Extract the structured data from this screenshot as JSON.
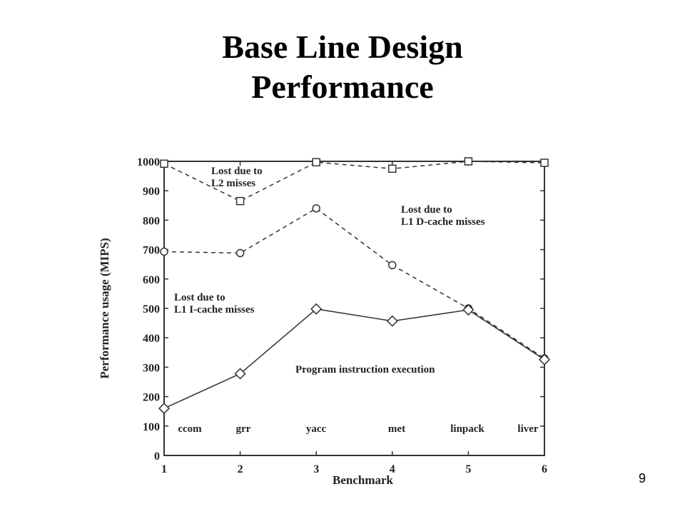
{
  "slide": {
    "title_line1": "Base Line Design",
    "title_line2": "Performance",
    "page_number": "9"
  },
  "chart_data": {
    "type": "line",
    "title": "",
    "xlabel": "Benchmark",
    "ylabel": "Performance usage (MIPS)",
    "x": [
      1,
      2,
      3,
      4,
      5,
      6
    ],
    "xlim": [
      1,
      6
    ],
    "ylim": [
      0,
      1000
    ],
    "yticks": [
      0,
      100,
      200,
      300,
      400,
      500,
      600,
      700,
      800,
      900,
      1000
    ],
    "grid": false,
    "categories": [
      "ccom",
      "grr",
      "yacc",
      "met",
      "linpack",
      "liver"
    ],
    "series": [
      {
        "values": [
          992,
          865,
          997,
          975,
          1000,
          995
        ],
        "marker": "square",
        "line_style": "dashed",
        "color": "#333333"
      },
      {
        "values": [
          693,
          688,
          840,
          647,
          500,
          330
        ],
        "marker": "circle",
        "line_style": "dashed",
        "color": "#333333"
      },
      {
        "values": [
          160,
          278,
          498,
          457,
          495,
          326
        ],
        "marker": "diamond",
        "line_style": "solid",
        "color": "#333333"
      }
    ],
    "annotations": [
      {
        "lines": [
          "Lost due to",
          "L2 misses"
        ]
      },
      {
        "lines": [
          "Lost due to",
          "L1 D-cache misses"
        ]
      },
      {
        "lines": [
          "Lost due to",
          "L1 I-cache misses"
        ]
      },
      {
        "lines": [
          "Program instruction execution"
        ]
      }
    ]
  }
}
